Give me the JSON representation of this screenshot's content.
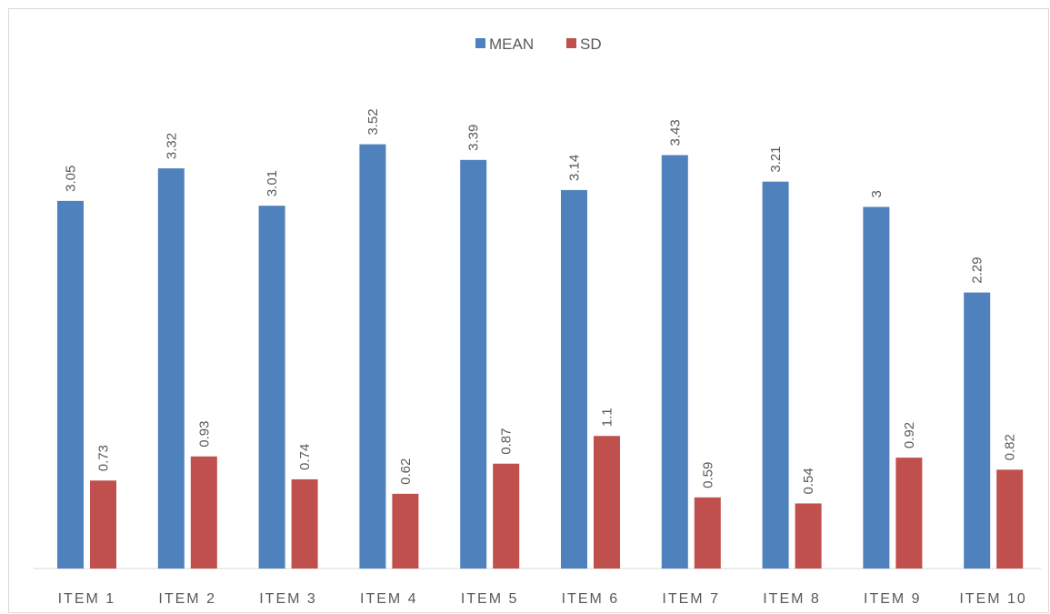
{
  "chart_data": {
    "type": "bar",
    "categories": [
      "ITEM 1",
      "ITEM 2",
      "ITEM 3",
      "ITEM 4",
      "ITEM 5",
      "ITEM 6",
      "ITEM 7",
      "ITEM 8",
      "ITEM 9",
      "ITEM 10"
    ],
    "series": [
      {
        "name": "MEAN",
        "color": "#4f81bd",
        "values": [
          3.05,
          3.32,
          3.01,
          3.52,
          3.39,
          3.14,
          3.43,
          3.21,
          3,
          2.29
        ],
        "labels": [
          "3.05",
          "3.32",
          "3.01",
          "3.52",
          "3.39",
          "3.14",
          "3.43",
          "3.21",
          "3",
          "2.29"
        ]
      },
      {
        "name": "SD",
        "color": "#c0504d",
        "values": [
          0.73,
          0.93,
          0.74,
          0.62,
          0.87,
          1.1,
          0.59,
          0.54,
          0.92,
          0.82
        ],
        "labels": [
          "0.73",
          "0.93",
          "0.74",
          "0.62",
          "0.87",
          "1.1",
          "0.59",
          "0.54",
          "0.92",
          "0.82"
        ]
      }
    ],
    "ylim": [
      0,
      4
    ],
    "legend_position": "top-center",
    "grid": false,
    "data_labels": "rotated, above bars"
  }
}
